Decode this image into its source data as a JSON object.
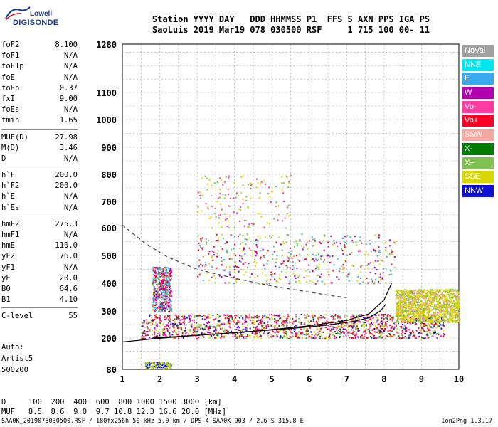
{
  "logo": {
    "lowell": "Lowell",
    "digisonde": "DIGISONDE"
  },
  "header": {
    "line1": "Station YYYY DAY   DDD HHMMSS P1  FFS S AXN PPS IGA PS",
    "line2": "SaoLuis 2019 Mar19 078 030500 RSF     1 715 100 00- 11"
  },
  "params": [
    {
      "name": "foF2",
      "value": "8.100"
    },
    {
      "name": "foF1",
      "value": "N/A"
    },
    {
      "name": "foF1p",
      "value": "N/A"
    },
    {
      "name": "foE",
      "value": "N/A"
    },
    {
      "name": "foEp",
      "value": "0.37"
    },
    {
      "name": "fxI",
      "value": "9.00"
    },
    {
      "name": "foEs",
      "value": "N/A"
    },
    {
      "name": "fmin",
      "value": "1.65"
    },
    {
      "sep": true
    },
    {
      "name": "MUF(D)",
      "value": "27.98"
    },
    {
      "name": "M(D)",
      "value": "3.46"
    },
    {
      "name": "D",
      "value": "N/A"
    },
    {
      "sep": true
    },
    {
      "name": "h`F",
      "value": "200.0"
    },
    {
      "name": "h`F2",
      "value": "200.0"
    },
    {
      "name": "h`E",
      "value": "N/A"
    },
    {
      "name": "h`Es",
      "value": "N/A"
    },
    {
      "sep": true
    },
    {
      "name": "hmF2",
      "value": "275.3"
    },
    {
      "name": "hmF1",
      "value": "N/A"
    },
    {
      "name": "hmE",
      "value": "110.0"
    },
    {
      "name": "yF2",
      "value": "76.0"
    },
    {
      "name": "yF1",
      "value": "N/A"
    },
    {
      "name": "yE",
      "value": "20.0"
    },
    {
      "name": "B0",
      "value": "64.6"
    },
    {
      "name": "B1",
      "value": "4.10"
    },
    {
      "sep": true
    },
    {
      "name": "C-level",
      "value": "55"
    }
  ],
  "artist": {
    "line1": "Auto:",
    "line2": "Artist5",
    "line3": "500200"
  },
  "legend": [
    {
      "label": "NoVal",
      "color": "#a0a0a0"
    },
    {
      "label": "NNE",
      "color": "#00e5ee"
    },
    {
      "label": "E",
      "color": "#3aaaf0"
    },
    {
      "label": "W",
      "color": "#b000b0"
    },
    {
      "label": "Vo-",
      "color": "#ff3aa0"
    },
    {
      "label": "Vo+",
      "color": "#ff0028"
    },
    {
      "label": "SSW",
      "color": "#f4a8a0"
    },
    {
      "label": "X-",
      "color": "#007a00"
    },
    {
      "label": "X+",
      "color": "#80c050"
    },
    {
      "label": "SSE",
      "color": "#d8d800"
    },
    {
      "label": "NNW",
      "color": "#1010d0"
    }
  ],
  "dmuf": {
    "d_line": "D     100  200  400  600  800 1000 1500 3000 [km]",
    "muf_line": "MUF   8.5  8.6  9.0  9.7 10.8 12.3 16.6 28.0 [MHz]"
  },
  "footer": {
    "left": "SAA0K_2019078030500.RSF / 180fx256h 50 kHz 5.0 km / DPS-4 SAA0K 903 / 2.6 S 315.8 E",
    "right": "Ion2Png 1.3.17"
  },
  "chart_data": {
    "type": "scatter",
    "x_ticks": [
      1,
      2,
      3,
      4,
      5,
      6,
      7,
      8,
      9,
      10
    ],
    "xlim": [
      1,
      10
    ],
    "y_ticks": [
      80,
      200,
      300,
      400,
      500,
      600,
      700,
      800,
      900,
      1000,
      1100,
      1280
    ],
    "ylim": [
      80,
      1280
    ],
    "y_scale": "sqrt-like (non-linear, compressed at top)",
    "grid": true,
    "series": [
      {
        "color": "#000000",
        "style": "solid",
        "x": [
          1.0,
          1.7,
          2.5,
          3.5,
          4.5,
          5.5,
          6.5,
          7.2,
          7.6,
          7.9,
          8.05
        ],
        "y": [
          185,
          195,
          205,
          215,
          225,
          235,
          248,
          262,
          275,
          300,
          325
        ]
      },
      {
        "color": "#000000",
        "style": "solid",
        "x": [
          1.8,
          3.0,
          4.5,
          6.0,
          7.0,
          7.6,
          8.0,
          8.2
        ],
        "y": [
          200,
          210,
          225,
          245,
          265,
          290,
          340,
          400
        ]
      },
      {
        "color": "#444444",
        "style": "dashed",
        "x": [
          1.0,
          1.6,
          2.2,
          3.0,
          4.0,
          5.0,
          6.0,
          6.6,
          7.0
        ],
        "y": [
          610,
          545,
          495,
          450,
          418,
          390,
          368,
          355,
          348
        ]
      }
    ],
    "scatter_bands": [
      {
        "x_range": [
          1.5,
          9.6
        ],
        "y_range": [
          200,
          290
        ],
        "density": "high",
        "colors": [
          "#ff0028",
          "#ff0028",
          "#ff3aa0",
          "#b000b0",
          "#80c050",
          "#007a00",
          "#1010d0",
          "#d8d800"
        ]
      },
      {
        "x_range": [
          8.3,
          10.0
        ],
        "y_range": [
          260,
          380
        ],
        "density": "high",
        "colors": [
          "#d8d800",
          "#d8d800",
          "#80c050",
          "#f4a8a0"
        ]
      },
      {
        "x_range": [
          3.0,
          8.3
        ],
        "y_range": [
          400,
          580
        ],
        "density": "medium",
        "colors": [
          "#ff0028",
          "#b000b0",
          "#3aaaf0",
          "#80c050",
          "#d8d800"
        ]
      },
      {
        "x_range": [
          3.0,
          5.5
        ],
        "y_range": [
          600,
          800
        ],
        "density": "low",
        "colors": [
          "#d8d800",
          "#80c050",
          "#ff3aa0"
        ]
      },
      {
        "x_range": [
          1.8,
          2.3
        ],
        "y_range": [
          300,
          460
        ],
        "density": "medium",
        "colors": [
          "#3aaaf0",
          "#b000b0",
          "#80c050",
          "#ff0028"
        ]
      },
      {
        "x_range": [
          1.6,
          2.3
        ],
        "y_range": [
          85,
          110
        ],
        "density": "low",
        "colors": [
          "#1010d0",
          "#80c050",
          "#d8d800"
        ]
      }
    ]
  }
}
